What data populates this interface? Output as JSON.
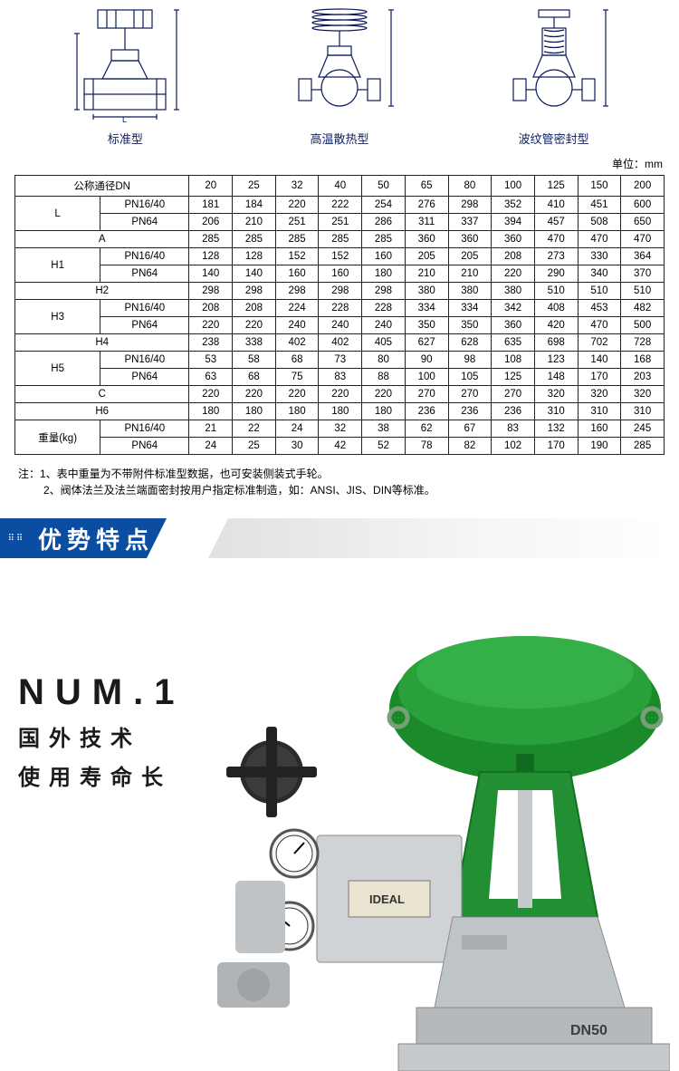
{
  "diagrams": {
    "labels": [
      "标准型",
      "高温散热型",
      "波纹管密封型"
    ],
    "stroke_color": "#0a1a5a"
  },
  "unit_label": "单位：mm",
  "table": {
    "header_dn": "公称通径DN",
    "dn_values": [
      "20",
      "25",
      "32",
      "40",
      "50",
      "65",
      "80",
      "100",
      "125",
      "150",
      "200"
    ],
    "rows": [
      {
        "group": "L",
        "sub": "PN16/40",
        "cells": [
          "181",
          "184",
          "220",
          "222",
          "254",
          "276",
          "298",
          "352",
          "410",
          "451",
          "600"
        ]
      },
      {
        "group": "L",
        "sub": "PN64",
        "cells": [
          "206",
          "210",
          "251",
          "251",
          "286",
          "311",
          "337",
          "394",
          "457",
          "508",
          "650"
        ]
      },
      {
        "group": "",
        "sub": "A",
        "span": true,
        "cells": [
          "285",
          "285",
          "285",
          "285",
          "285",
          "360",
          "360",
          "360",
          "470",
          "470",
          "470"
        ]
      },
      {
        "group": "H1",
        "sub": "PN16/40",
        "cells": [
          "128",
          "128",
          "152",
          "152",
          "160",
          "205",
          "205",
          "208",
          "273",
          "330",
          "364"
        ]
      },
      {
        "group": "H1",
        "sub": "PN64",
        "cells": [
          "140",
          "140",
          "160",
          "160",
          "180",
          "210",
          "210",
          "220",
          "290",
          "340",
          "370"
        ]
      },
      {
        "group": "",
        "sub": "H2",
        "span": true,
        "cells": [
          "298",
          "298",
          "298",
          "298",
          "298",
          "380",
          "380",
          "380",
          "510",
          "510",
          "510"
        ]
      },
      {
        "group": "H3",
        "sub": "PN16/40",
        "cells": [
          "208",
          "208",
          "224",
          "228",
          "228",
          "334",
          "334",
          "342",
          "408",
          "453",
          "482"
        ]
      },
      {
        "group": "H3",
        "sub": "PN64",
        "cells": [
          "220",
          "220",
          "240",
          "240",
          "240",
          "350",
          "350",
          "360",
          "420",
          "470",
          "500"
        ]
      },
      {
        "group": "",
        "sub": "H4",
        "span": true,
        "cells": [
          "238",
          "338",
          "402",
          "402",
          "405",
          "627",
          "628",
          "635",
          "698",
          "702",
          "728"
        ]
      },
      {
        "group": "H5",
        "sub": "PN16/40",
        "cells": [
          "53",
          "58",
          "68",
          "73",
          "80",
          "90",
          "98",
          "108",
          "123",
          "140",
          "168"
        ]
      },
      {
        "group": "H5",
        "sub": "PN64",
        "cells": [
          "63",
          "68",
          "75",
          "83",
          "88",
          "100",
          "105",
          "125",
          "148",
          "170",
          "203"
        ]
      },
      {
        "group": "",
        "sub": "C",
        "span": true,
        "cells": [
          "220",
          "220",
          "220",
          "220",
          "220",
          "270",
          "270",
          "270",
          "320",
          "320",
          "320"
        ]
      },
      {
        "group": "",
        "sub": "H6",
        "span": true,
        "cells": [
          "180",
          "180",
          "180",
          "180",
          "180",
          "236",
          "236",
          "236",
          "310",
          "310",
          "310"
        ]
      },
      {
        "group": "重量(kg)",
        "sub": "PN16/40",
        "cells": [
          "21",
          "22",
          "24",
          "32",
          "38",
          "62",
          "67",
          "83",
          "132",
          "160",
          "245"
        ]
      },
      {
        "group": "重量(kg)",
        "sub": "PN64",
        "cells": [
          "24",
          "25",
          "30",
          "42",
          "52",
          "78",
          "82",
          "102",
          "170",
          "190",
          "285"
        ]
      }
    ]
  },
  "notes": {
    "line1": "注：1、表中重量为不带附件标准型数据，也可安装侧装式手轮。",
    "line2": "2、阀体法兰及法兰端面密封按用户指定标准制造，如：ANSI、JIS、DIN等标准。"
  },
  "section_banner": {
    "title": "优势特点",
    "bg_blue": "#0b4da0",
    "bg_gray_start": "#dfe1e3",
    "bg_gray_end": "#ffffff"
  },
  "feature": {
    "num": "NUM.1",
    "line1": "国外技术",
    "line2": "使用寿命长",
    "actuator_color": "#1a8a2a",
    "body_color": "#b8bcbf"
  }
}
